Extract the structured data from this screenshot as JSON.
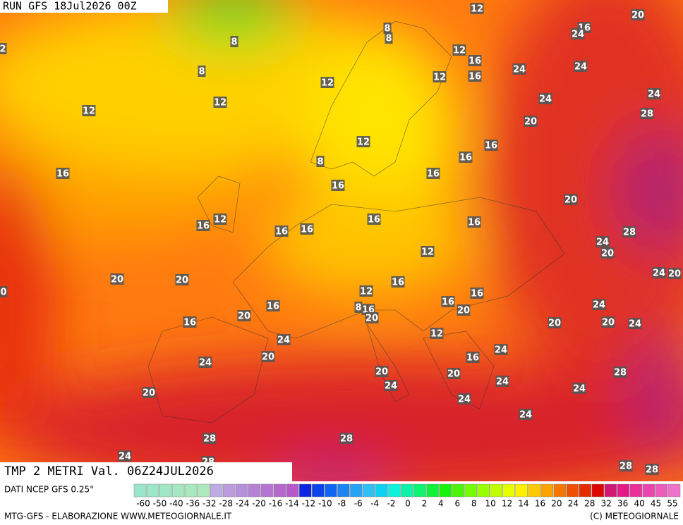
{
  "header": "RUN GFS 18Jul2026 00Z",
  "title": "TMP 2 METRI Val. 06Z24JUL2026",
  "data_source": "DATI NCEP GFS 0.25°",
  "footer_left": "MTG-GFS - ELABORAZIONE WWW.METEOGIORNALE.IT",
  "footer_right": "(C) METEOGIORNALE",
  "color_scale": [
    "-60",
    "-50",
    "-40",
    "-36",
    "-32",
    "-28",
    "-24",
    "-20",
    "-16",
    "-14",
    "-12",
    "-10",
    "-8",
    "-6",
    "-4",
    "-2",
    "0",
    "2",
    "4",
    "6",
    "8",
    "10",
    "12",
    "14",
    "16",
    "20",
    "24",
    "28",
    "32",
    "36",
    "40",
    "45",
    "55"
  ],
  "map_labels": [
    "12",
    "20",
    "16",
    "24",
    "8",
    "8",
    "8",
    "12",
    "16",
    "8",
    "12",
    "16",
    "24",
    "24",
    "12",
    "12",
    "12",
    "24",
    "24",
    "28",
    "20",
    "12",
    "16",
    "8",
    "16",
    "16",
    "16",
    "16",
    "20",
    "16",
    "12",
    "16",
    "16",
    "16",
    "16",
    "28",
    "24",
    "20",
    "12",
    "24",
    "20",
    "20",
    "20",
    "0",
    "16",
    "12",
    "16",
    "16",
    "8",
    "16",
    "16",
    "24",
    "20",
    "20",
    "20",
    "16",
    "20",
    "20",
    "24",
    "12",
    "24",
    "24",
    "20",
    "16",
    "24",
    "20",
    "28",
    "20",
    "24",
    "24",
    "24",
    "20",
    "24",
    "24",
    "28",
    "28",
    "24",
    "28",
    "28",
    "28",
    "2"
  ]
}
